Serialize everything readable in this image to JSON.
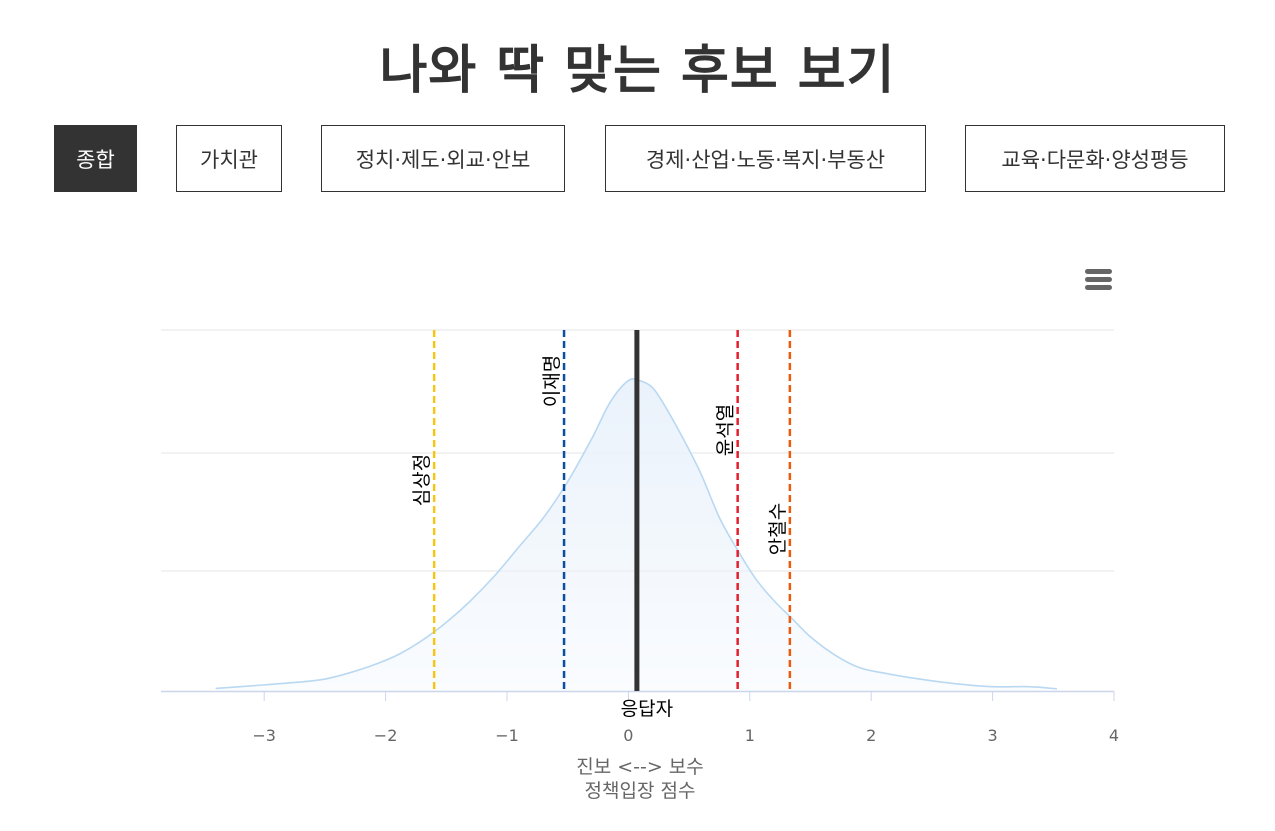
{
  "page": {
    "title": "나와 딱 맞는 후보 보기"
  },
  "tabs": [
    {
      "label": "종합",
      "active": true
    },
    {
      "label": "가치관",
      "active": false
    },
    {
      "label": "정치·제도·외교·안보",
      "active": false
    },
    {
      "label": "경제·산업·노동·복지·부동산",
      "active": false
    },
    {
      "label": "교육·다문화·양성평등",
      "active": false
    }
  ],
  "chart_menu": {
    "icon": "hamburger-menu-icon"
  },
  "chart_data": {
    "type": "area",
    "xlabel": "진보 <--> 보수",
    "xlabel_sub": "정책입장 점수",
    "xlim": [
      -3.85,
      4
    ],
    "ylim": [
      0,
      1
    ],
    "x_ticks": [
      -3,
      -2,
      -1,
      0,
      1,
      2,
      3,
      4
    ],
    "x_tick_labels": [
      "−3",
      "−2",
      "−1",
      "0",
      "1",
      "2",
      "3",
      "4"
    ],
    "grid": true,
    "density": {
      "x": [
        -3.4,
        -3.0,
        -2.7,
        -2.5,
        -2.3,
        -2.1,
        -1.9,
        -1.7,
        -1.5,
        -1.3,
        -1.1,
        -0.9,
        -0.7,
        -0.5,
        -0.3,
        -0.15,
        0.0,
        0.1,
        0.2,
        0.3,
        0.45,
        0.6,
        0.75,
        0.9,
        1.05,
        1.2,
        1.35,
        1.5,
        1.7,
        1.9,
        2.1,
        2.4,
        2.7,
        3.0,
        3.3,
        3.53
      ],
      "y": [
        0.007,
        0.017,
        0.025,
        0.033,
        0.05,
        0.072,
        0.1,
        0.14,
        0.19,
        0.25,
        0.32,
        0.4,
        0.48,
        0.58,
        0.7,
        0.8,
        0.86,
        0.859,
        0.84,
        0.79,
        0.7,
        0.6,
        0.48,
        0.39,
        0.31,
        0.25,
        0.2,
        0.15,
        0.1,
        0.065,
        0.05,
        0.033,
        0.02,
        0.012,
        0.012,
        0.006
      ],
      "fill_color": "#eaf2fb",
      "line_color": "#b9d8f2"
    },
    "markers": [
      {
        "name": "심상정",
        "x": -1.6,
        "color": "#f5c518",
        "style": "dashed"
      },
      {
        "name": "이재명",
        "x": -0.53,
        "color": "#0b4ea2",
        "style": "dashed"
      },
      {
        "name": "응답자",
        "x": 0.07,
        "color": "#333333",
        "style": "solid"
      },
      {
        "name": "윤석열",
        "x": 0.9,
        "color": "#e5202e",
        "style": "dashed"
      },
      {
        "name": "안철수",
        "x": 1.33,
        "color": "#ea5b0c",
        "style": "dashed"
      }
    ]
  }
}
